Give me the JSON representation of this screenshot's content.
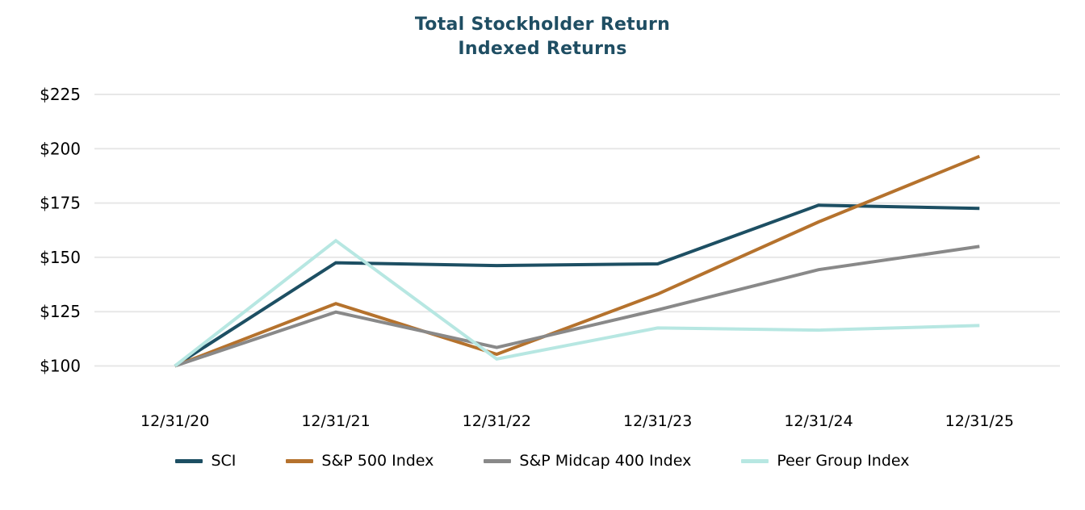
{
  "title": {
    "line1": "Total Stockholder Return",
    "line2": "Indexed Returns"
  },
  "colors": {
    "title_text": "#1f4e63",
    "axis_text": "#000000",
    "gridline": "#e7e7e7",
    "background": "#ffffff"
  },
  "chart_data": {
    "type": "line",
    "title": "Total Stockholder Return Indexed Returns",
    "categories": [
      "12/31/20",
      "12/31/21",
      "12/31/22",
      "12/31/23",
      "12/31/24",
      "12/31/25"
    ],
    "y_ticks": [
      100,
      125,
      150,
      175,
      200,
      225
    ],
    "y_tick_prefix": "$",
    "ylim": [
      100,
      225
    ],
    "grid": "horizontal",
    "legend_position": "bottom",
    "xlabel": "",
    "ylabel": "",
    "series": [
      {
        "name": "SCI",
        "color": "#1d4f63",
        "values": [
          100,
          147.5,
          146.2,
          147.0,
          174.0,
          172.5
        ]
      },
      {
        "name": "S&P 500 Index",
        "color": "#b5722d",
        "values": [
          100,
          128.7,
          105.4,
          133.1,
          166.3,
          196.5
        ]
      },
      {
        "name": "S&P Midcap 400 Index",
        "color": "#898989",
        "values": [
          100,
          124.8,
          108.5,
          125.8,
          144.3,
          155.0
        ]
      },
      {
        "name": "Peer Group Index",
        "color": "#b7e7e2",
        "values": [
          100,
          157.7,
          103.2,
          117.5,
          116.5,
          118.6
        ]
      }
    ]
  }
}
